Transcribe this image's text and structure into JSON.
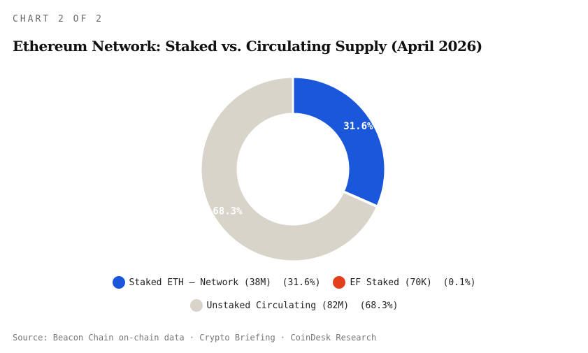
{
  "header": {
    "kicker": "CHART 2 OF 2"
  },
  "chart_data": {
    "type": "pie",
    "title": "Ethereum Network: Staked vs. Circulating Supply (April 2026)",
    "variant": "donut",
    "slices": [
      {
        "name": "Staked ETH — Network",
        "amount": "38M",
        "percent": 31.6,
        "label": "31.6%",
        "color": "#1a57db",
        "legend": "Staked ETH — Network (38M)  (31.6%)"
      },
      {
        "name": "EF Staked",
        "amount": "70K",
        "percent": 0.1,
        "label": "",
        "color": "#e2401b",
        "legend": "EF Staked (70K)  (0.1%)"
      },
      {
        "name": "Unstaked Circulating",
        "amount": "82M",
        "percent": 68.3,
        "label": "68.3%",
        "color": "#d9d4c9",
        "legend": "Unstaked Circulating (82M)  (68.3%)"
      }
    ]
  },
  "footer": {
    "source": "Source: Beacon Chain on-chain data · Crypto Briefing · CoinDesk Research"
  }
}
